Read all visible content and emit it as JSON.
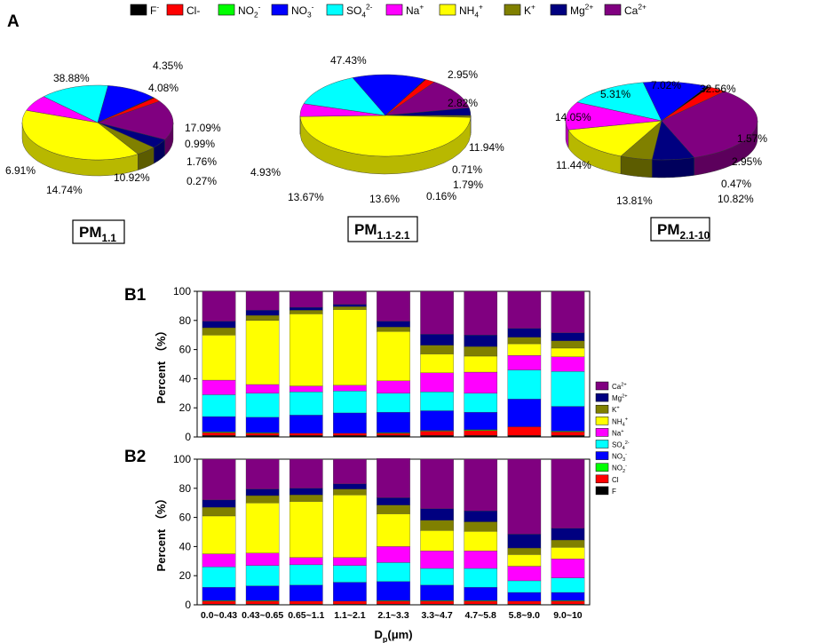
{
  "panel_labels": {
    "a": "A",
    "b1": "B1",
    "b2": "B2"
  },
  "species": [
    {
      "key": "F",
      "base": "F",
      "sup": "-",
      "sub": "",
      "color": "#000000"
    },
    {
      "key": "Cl",
      "base": "Cl-",
      "sup": "",
      "sub": "",
      "color": "#ff0000"
    },
    {
      "key": "NO2",
      "base": "NO",
      "sup": "-",
      "sub": "2",
      "color": "#00ff00"
    },
    {
      "key": "NO3",
      "base": "NO",
      "sup": "-",
      "sub": "3",
      "color": "#0000ff"
    },
    {
      "key": "SO4",
      "base": "SO",
      "sup": "2-",
      "sub": "4",
      "color": "#00ffff"
    },
    {
      "key": "Na",
      "base": "Na",
      "sup": "+",
      "sub": "",
      "color": "#ff00ff"
    },
    {
      "key": "NH4",
      "base": "NH",
      "sup": "+",
      "sub": "4",
      "color": "#ffff00"
    },
    {
      "key": "K",
      "base": "K",
      "sup": "+",
      "sub": "",
      "color": "#808000"
    },
    {
      "key": "Mg",
      "base": "Mg",
      "sup": "2+",
      "sub": "",
      "color": "#000080"
    },
    {
      "key": "Ca",
      "base": "Ca",
      "sup": "2+",
      "sub": "",
      "color": "#800080"
    }
  ],
  "bar_legend": [
    {
      "key": "Ca",
      "base": "Ca",
      "sup": "2+",
      "sub": ""
    },
    {
      "key": "Mg",
      "base": "Mg",
      "sup": "2+",
      "sub": ""
    },
    {
      "key": "K",
      "base": "K",
      "sup": "+",
      "sub": ""
    },
    {
      "key": "NH4",
      "base": "NH",
      "sup": "+",
      "sub": "4"
    },
    {
      "key": "Na",
      "base": "Na",
      "sup": "+",
      "sub": ""
    },
    {
      "key": "SO4",
      "base": "SO",
      "sup": "2-",
      "sub": "4"
    },
    {
      "key": "NO3",
      "base": "NO",
      "sup": "-",
      "sub": "3"
    },
    {
      "key": "NO2",
      "base": "NO",
      "sup": "-",
      "sub": "2"
    },
    {
      "key": "Cl",
      "base": "Cl",
      "sup": "",
      "sub": ""
    },
    {
      "key": "F",
      "base": "F",
      "sup": "",
      "sub": ""
    }
  ],
  "chart_data": [
    {
      "type": "pie",
      "id": "PM1.1",
      "title": {
        "base": "PM",
        "sub": "1.1"
      },
      "slices": [
        {
          "key": "F",
          "value": 0.27
        },
        {
          "key": "Cl",
          "value": 1.76
        },
        {
          "key": "NO2",
          "value": 0.0
        },
        {
          "key": "NO3",
          "value": 10.92
        },
        {
          "key": "SO4",
          "value": 14.74
        },
        {
          "key": "Na",
          "value": 6.91
        },
        {
          "key": "NH4",
          "value": 38.88
        },
        {
          "key": "K",
          "value": 4.35
        },
        {
          "key": "Mg",
          "value": 4.08
        },
        {
          "key": "Ca",
          "value": 17.09
        }
      ],
      "labels": [
        "38.88%",
        "4.35%",
        "4.08%",
        "17.09%",
        "0.99%",
        "1.76%",
        "0.27%",
        "10.92%",
        "14.74%",
        "6.91%"
      ]
    },
    {
      "type": "pie",
      "id": "PM1.1-2.1",
      "title": {
        "base": "PM",
        "sub": "1.1-2.1"
      },
      "slices": [
        {
          "key": "F",
          "value": 0.16
        },
        {
          "key": "Cl",
          "value": 1.79
        },
        {
          "key": "NO2",
          "value": 0.0
        },
        {
          "key": "NO3",
          "value": 13.6
        },
        {
          "key": "SO4",
          "value": 13.67
        },
        {
          "key": "Na",
          "value": 4.93
        },
        {
          "key": "NH4",
          "value": 47.43
        },
        {
          "key": "K",
          "value": 0.71
        },
        {
          "key": "Mg",
          "value": 2.95
        },
        {
          "key": "Ca",
          "value": 11.94
        }
      ],
      "labels": [
        "47.43%",
        "2.95%",
        "2.82%",
        "11.94%",
        "0.71%",
        "1.79%",
        "0.16%",
        "13.6%",
        "13.67%",
        "4.93%"
      ]
    },
    {
      "type": "pie",
      "id": "PM2.1-10",
      "title": {
        "base": "PM",
        "sub": "2.1-10"
      },
      "slices": [
        {
          "key": "F",
          "value": 0.47
        },
        {
          "key": "Cl",
          "value": 2.95
        },
        {
          "key": "NO2",
          "value": 0.0
        },
        {
          "key": "NO3",
          "value": 10.82
        },
        {
          "key": "SO4",
          "value": 13.81
        },
        {
          "key": "Na",
          "value": 11.44
        },
        {
          "key": "NH4",
          "value": 14.05
        },
        {
          "key": "K",
          "value": 5.31
        },
        {
          "key": "Mg",
          "value": 7.02
        },
        {
          "key": "Ca",
          "value": 32.56
        }
      ],
      "labels": [
        "32.56%",
        "7.02%",
        "5.31%",
        "14.05%",
        "11.44%",
        "13.81%",
        "10.82%",
        "0.47%",
        "2.95%",
        "1.57%"
      ]
    },
    {
      "type": "bar",
      "id": "B1",
      "stacked": true,
      "ylabel": "Percent （%）",
      "ylim": [
        0,
        100
      ],
      "yticks": [
        0,
        20,
        40,
        60,
        80,
        100
      ],
      "categories": [
        "0.0~0.43",
        "0.43~0.65",
        "0.65~1.1",
        "1.1~2.1",
        "2.1~3.3",
        "3.3~4.7",
        "4.7~5.8",
        "5.8~9.0",
        "9.0~10"
      ],
      "series": [
        {
          "key": "F",
          "values": [
            1,
            1,
            1,
            1,
            1,
            1,
            1,
            1,
            1
          ]
        },
        {
          "key": "Cl",
          "values": [
            2,
            1.5,
            1.5,
            1.5,
            1.5,
            3,
            3.5,
            6,
            2.5
          ]
        },
        {
          "key": "NO2",
          "values": [
            0.5,
            0.5,
            0,
            0,
            0.5,
            0.5,
            0.5,
            0,
            0.5
          ]
        },
        {
          "key": "NO3",
          "values": [
            10.5,
            10.5,
            12.5,
            14,
            14,
            13.5,
            12,
            19,
            17
          ]
        },
        {
          "key": "SO4",
          "values": [
            15,
            16.5,
            16,
            15,
            13,
            13,
            13,
            20,
            24
          ]
        },
        {
          "key": "Na",
          "values": [
            10,
            6,
            4,
            4,
            8.5,
            13,
            14.5,
            10,
            10
          ]
        },
        {
          "key": "NH4",
          "values": [
            31,
            44,
            49.5,
            52,
            34,
            13,
            11,
            8,
            6
          ]
        },
        {
          "key": "K",
          "values": [
            5,
            3.5,
            2.5,
            2,
            3,
            6,
            6.5,
            4.5,
            5
          ]
        },
        {
          "key": "Mg",
          "values": [
            4.5,
            3.5,
            2,
            1.5,
            4,
            7.5,
            8,
            6,
            5.5
          ]
        },
        {
          "key": "Ca",
          "values": [
            20.5,
            13,
            11,
            9,
            20.5,
            29.5,
            30,
            25.5,
            28.5
          ]
        }
      ]
    },
    {
      "type": "bar",
      "id": "B2",
      "stacked": true,
      "ylabel": "Percent （%）",
      "xlabel": "D",
      "xlabel_sub": "p",
      "xlabel_tail": "(μm)",
      "ylim": [
        0,
        100
      ],
      "yticks": [
        0,
        20,
        40,
        60,
        80,
        100
      ],
      "categories": [
        "0.0~0.43",
        "0.43~0.65",
        "0.65~1.1",
        "1.1~2.1",
        "2.1~3.3",
        "3.3~4.7",
        "4.7~5.8",
        "5.8~9.0",
        "9.0~10"
      ],
      "series": [
        {
          "key": "F",
          "values": [
            0.5,
            0.5,
            0.5,
            0.5,
            0.5,
            0.5,
            0.5,
            0.5,
            0.5
          ]
        },
        {
          "key": "Cl",
          "values": [
            2,
            2,
            2,
            2,
            2,
            2,
            2,
            2,
            2
          ]
        },
        {
          "key": "NO2",
          "values": [
            0.5,
            0.5,
            0,
            0,
            0.5,
            0.5,
            0.5,
            0,
            0.5
          ]
        },
        {
          "key": "NO3",
          "values": [
            9,
            10,
            11,
            13,
            13,
            10.5,
            9,
            6,
            5.5
          ]
        },
        {
          "key": "SO4",
          "values": [
            14,
            14,
            14,
            11.5,
            13,
            11.5,
            13,
            8,
            10
          ]
        },
        {
          "key": "Na",
          "values": [
            9,
            8.5,
            5,
            5.5,
            11,
            12,
            12,
            10,
            13
          ]
        },
        {
          "key": "NH4",
          "values": [
            26,
            34.5,
            38.5,
            43,
            22.5,
            14,
            13.5,
            8,
            8
          ]
        },
        {
          "key": "K",
          "values": [
            6,
            5,
            4.5,
            4,
            6,
            7,
            6.5,
            4.5,
            5
          ]
        },
        {
          "key": "Mg",
          "values": [
            5,
            4.5,
            4.5,
            3.5,
            5,
            8,
            7.5,
            9.5,
            8
          ]
        },
        {
          "key": "Ca",
          "values": [
            28,
            20.5,
            20,
            17,
            27,
            34,
            35.5,
            51.5,
            47.5
          ]
        }
      ]
    }
  ]
}
